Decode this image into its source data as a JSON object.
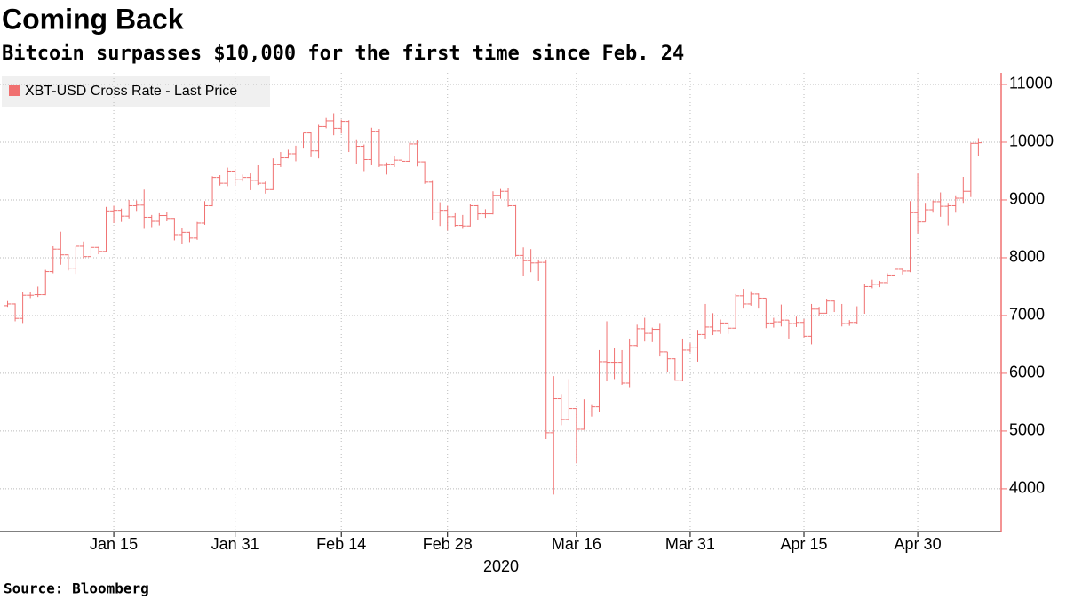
{
  "chart_data": {
    "type": "ohlc",
    "title": "Coming Back",
    "subtitle": "Bitcoin surpasses $10,000 for the first time since Feb. 24",
    "source": "Source: Bloomberg",
    "year_label": "2020",
    "series_name": "XBT-USD Cross Rate - Last Price",
    "color": "#f07070",
    "grid": true,
    "xlim": [
      "2019-12-31",
      "2020-05-11"
    ],
    "ylim": [
      3260,
      11200
    ],
    "yticks": [
      4000,
      5000,
      6000,
      7000,
      8000,
      9000,
      10000,
      11000
    ],
    "xticks": [
      {
        "value": "2020-01-15",
        "label": "Jan 15"
      },
      {
        "value": "2020-01-31",
        "label": "Jan 31"
      },
      {
        "value": "2020-02-14",
        "label": "Feb 14"
      },
      {
        "value": "2020-02-28",
        "label": "Feb 28"
      },
      {
        "value": "2020-03-16",
        "label": "Mar 16"
      },
      {
        "value": "2020-03-31",
        "label": "Mar 31"
      },
      {
        "value": "2020-04-15",
        "label": "Apr 15"
      },
      {
        "value": "2020-04-30",
        "label": "Apr 30"
      }
    ],
    "x": [
      "2020-01-01",
      "2020-01-02",
      "2020-01-03",
      "2020-01-04",
      "2020-01-05",
      "2020-01-06",
      "2020-01-07",
      "2020-01-08",
      "2020-01-09",
      "2020-01-10",
      "2020-01-11",
      "2020-01-12",
      "2020-01-13",
      "2020-01-14",
      "2020-01-15",
      "2020-01-16",
      "2020-01-17",
      "2020-01-18",
      "2020-01-19",
      "2020-01-20",
      "2020-01-21",
      "2020-01-22",
      "2020-01-23",
      "2020-01-24",
      "2020-01-25",
      "2020-01-26",
      "2020-01-27",
      "2020-01-28",
      "2020-01-29",
      "2020-01-30",
      "2020-01-31",
      "2020-02-01",
      "2020-02-02",
      "2020-02-03",
      "2020-02-04",
      "2020-02-05",
      "2020-02-06",
      "2020-02-07",
      "2020-02-08",
      "2020-02-09",
      "2020-02-10",
      "2020-02-11",
      "2020-02-12",
      "2020-02-13",
      "2020-02-14",
      "2020-02-15",
      "2020-02-16",
      "2020-02-17",
      "2020-02-18",
      "2020-02-19",
      "2020-02-20",
      "2020-02-21",
      "2020-02-22",
      "2020-02-23",
      "2020-02-24",
      "2020-02-25",
      "2020-02-26",
      "2020-02-27",
      "2020-02-28",
      "2020-02-29",
      "2020-03-01",
      "2020-03-02",
      "2020-03-03",
      "2020-03-04",
      "2020-03-05",
      "2020-03-06",
      "2020-03-07",
      "2020-03-08",
      "2020-03-09",
      "2020-03-10",
      "2020-03-11",
      "2020-03-12",
      "2020-03-13",
      "2020-03-14",
      "2020-03-15",
      "2020-03-16",
      "2020-03-17",
      "2020-03-18",
      "2020-03-19",
      "2020-03-20",
      "2020-03-21",
      "2020-03-22",
      "2020-03-23",
      "2020-03-24",
      "2020-03-25",
      "2020-03-26",
      "2020-03-27",
      "2020-03-28",
      "2020-03-29",
      "2020-03-30",
      "2020-03-31",
      "2020-04-01",
      "2020-04-02",
      "2020-04-03",
      "2020-04-04",
      "2020-04-05",
      "2020-04-06",
      "2020-04-07",
      "2020-04-08",
      "2020-04-09",
      "2020-04-10",
      "2020-04-11",
      "2020-04-12",
      "2020-04-13",
      "2020-04-14",
      "2020-04-15",
      "2020-04-16",
      "2020-04-17",
      "2020-04-18",
      "2020-04-19",
      "2020-04-20",
      "2020-04-21",
      "2020-04-22",
      "2020-04-23",
      "2020-04-24",
      "2020-04-25",
      "2020-04-26",
      "2020-04-27",
      "2020-04-28",
      "2020-04-29",
      "2020-04-30",
      "2020-05-01",
      "2020-05-02",
      "2020-05-03",
      "2020-05-04",
      "2020-05-05",
      "2020-05-06",
      "2020-05-07",
      "2020-05-08"
    ],
    "open": [
      7170,
      7200,
      6950,
      7350,
      7360,
      7360,
      7760,
      8150,
      8050,
      7820,
      8200,
      8020,
      8180,
      8110,
      8810,
      8820,
      8720,
      8900,
      8910,
      8700,
      8630,
      8730,
      8680,
      8400,
      8440,
      8340,
      8600,
      8900,
      9390,
      9290,
      9500,
      9350,
      9390,
      9340,
      9290,
      9180,
      9610,
      9730,
      9800,
      9900,
      10160,
      9850,
      10270,
      10370,
      10240,
      10360,
      9900,
      9930,
      9700,
      10190,
      9600,
      9610,
      9690,
      9670,
      9970,
      9660,
      9310,
      8790,
      8820,
      8710,
      8560,
      8550,
      8900,
      8760,
      8760,
      9080,
      9150,
      8900,
      8040,
      7950,
      7910,
      7920,
      4970,
      5560,
      5200,
      5390,
      5030,
      5330,
      5420,
      6200,
      6190,
      6190,
      5830,
      6480,
      6770,
      6690,
      6760,
      6370,
      6250,
      5880,
      6400,
      6440,
      6670,
      6800,
      6740,
      6870,
      6780,
      7340,
      7200,
      7370,
      7300,
      6870,
      6890,
      6920,
      6860,
      6880,
      6640,
      7110,
      7040,
      7250,
      7130,
      6860,
      6880,
      7130,
      7500,
      7540,
      7570,
      7700,
      7800,
      7770,
      8780,
      8620,
      8830,
      8970,
      8890,
      8900,
      9030,
      9150,
      9980
    ],
    "high": [
      7250,
      7210,
      7400,
      7400,
      7500,
      7790,
      8200,
      8450,
      8060,
      8200,
      8280,
      8190,
      8190,
      8880,
      8900,
      8850,
      9000,
      8990,
      9180,
      8740,
      8770,
      8790,
      8690,
      8510,
      8450,
      8620,
      8980,
      9410,
      9430,
      9560,
      9530,
      9440,
      9460,
      9600,
      9320,
      9720,
      9830,
      9870,
      9940,
      10160,
      10180,
      10300,
      10420,
      10500,
      10390,
      10380,
      10050,
      9960,
      10250,
      10230,
      9650,
      9760,
      9690,
      9990,
      10030,
      9670,
      9330,
      8960,
      8900,
      8770,
      8740,
      8930,
      8910,
      8840,
      9150,
      9190,
      9210,
      8910,
      8180,
      8150,
      7970,
      7970,
      5950,
      5640,
      5900,
      5390,
      5550,
      5450,
      6400,
      6900,
      6430,
      6400,
      6600,
      6840,
      6960,
      6790,
      6870,
      6370,
      6260,
      6600,
      6520,
      6750,
      7200,
      7040,
      6930,
      6880,
      7370,
      7460,
      7420,
      7380,
      7300,
      6960,
      7190,
      6920,
      6980,
      6940,
      7200,
      7150,
      7290,
      7260,
      7200,
      6920,
      7160,
      7550,
      7620,
      7600,
      7730,
      7800,
      7810,
      8980,
      9460,
      8950,
      8990,
      9130,
      8950,
      9080,
      9400,
      9990,
      10070
    ],
    "low": [
      7150,
      6900,
      6870,
      7300,
      7320,
      7350,
      7730,
      7880,
      7780,
      7720,
      7990,
      8000,
      8060,
      8100,
      8600,
      8620,
      8680,
      8810,
      8500,
      8530,
      8560,
      8630,
      8300,
      8240,
      8270,
      8310,
      8570,
      8890,
      9250,
      9240,
      9250,
      9320,
      9170,
      9260,
      9110,
      9170,
      9570,
      9720,
      9670,
      9890,
      9740,
      9720,
      10240,
      10120,
      10150,
      9830,
      9630,
      9500,
      9600,
      9570,
      9440,
      9570,
      9590,
      9660,
      9580,
      9280,
      8650,
      8550,
      8470,
      8540,
      8500,
      8540,
      8660,
      8690,
      8750,
      9020,
      8880,
      8020,
      7690,
      7750,
      7600,
      4860,
      3900,
      5100,
      5180,
      4440,
      5020,
      5250,
      5330,
      5860,
      5900,
      5800,
      5760,
      6460,
      6550,
      6540,
      6290,
      6030,
      5870,
      5860,
      6360,
      6200,
      6600,
      6660,
      6680,
      6680,
      6770,
      7120,
      7170,
      7120,
      6780,
      6790,
      6810,
      6600,
      6800,
      6620,
      6500,
      7000,
      7030,
      7060,
      6810,
      6820,
      6860,
      7030,
      7470,
      7490,
      7550,
      7680,
      7710,
      7750,
      8420,
      8620,
      8780,
      8710,
      8560,
      8780,
      8950,
      9050,
      9760
    ],
    "close": [
      7200,
      6950,
      7350,
      7350,
      7360,
      7760,
      8150,
      8050,
      7820,
      8200,
      8020,
      8180,
      8110,
      8810,
      8820,
      8720,
      8900,
      8910,
      8700,
      8630,
      8730,
      8680,
      8400,
      8440,
      8340,
      8600,
      8900,
      9390,
      9290,
      9500,
      9350,
      9390,
      9340,
      9290,
      9180,
      9610,
      9730,
      9800,
      9900,
      10160,
      9850,
      10270,
      10370,
      10240,
      10360,
      9900,
      9930,
      9700,
      10190,
      9600,
      9610,
      9690,
      9670,
      9970,
      9660,
      9310,
      8790,
      8820,
      8710,
      8560,
      8550,
      8900,
      8760,
      8760,
      9080,
      9150,
      8900,
      8040,
      7950,
      7910,
      7920,
      4970,
      5560,
      5200,
      5390,
      5030,
      5330,
      5420,
      6200,
      6190,
      6190,
      5830,
      6480,
      6770,
      6690,
      6760,
      6370,
      6250,
      5880,
      6400,
      6440,
      6670,
      6800,
      6740,
      6870,
      6780,
      7340,
      7200,
      7370,
      7300,
      6870,
      6890,
      6920,
      6860,
      6880,
      6640,
      7110,
      7040,
      7250,
      7130,
      6860,
      6880,
      7130,
      7500,
      7540,
      7570,
      7700,
      7800,
      7770,
      8780,
      8620,
      8830,
      8970,
      8890,
      8900,
      9030,
      9150,
      9980,
      9990
    ]
  }
}
